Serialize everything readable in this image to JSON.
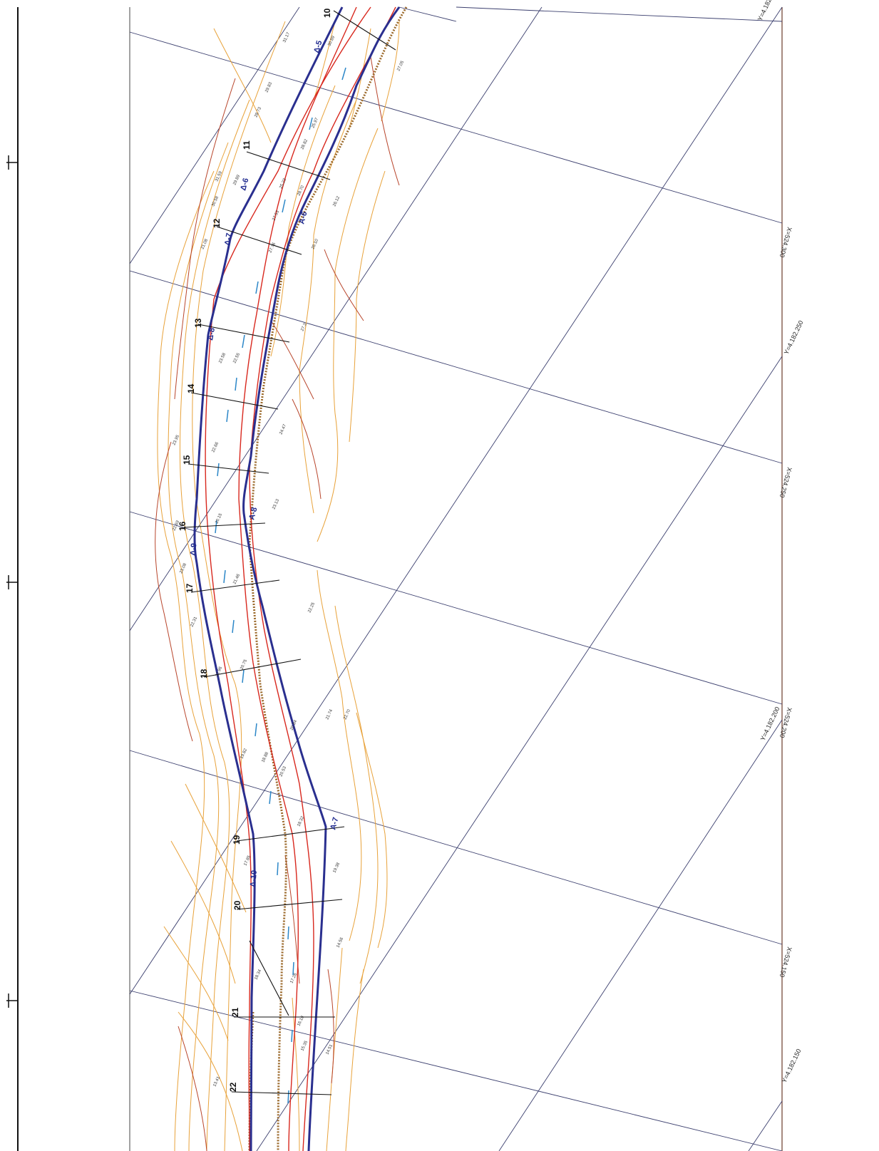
{
  "colors": {
    "grid": "#3b3f6e",
    "contour_orange": "#e8a23a",
    "contour_red": "#b8452b",
    "axis_blue": "#2a2f8f",
    "line_red": "#d8281e",
    "section_black": "#111111",
    "hatched_brown": "#9c6a2c",
    "water_blue": "#2c87c8"
  },
  "sections": [
    "10",
    "11",
    "12",
    "13",
    "14",
    "15",
    "16",
    "17",
    "18",
    "19",
    "20",
    "21",
    "22"
  ],
  "vertices": [
    "Δ-5",
    "Δ-6",
    "Δ-7",
    "Δ-8",
    "Δ-9",
    "Δ-10",
    "A-6",
    "A-7",
    "A-8"
  ],
  "grid_labels": [
    "X=524.300",
    "Y=4.182.250",
    "X=524.250",
    "X=524.200",
    "Y=4.182.200",
    "X=524.150",
    "Y=4.182.150",
    "Y=4.182"
  ],
  "elevations": [
    "31.17",
    "29.83",
    "28.73",
    "30.89",
    "27.05",
    "25.97",
    "28.82",
    "31.59",
    "30.58",
    "29.89",
    "25.23",
    "27.53",
    "28.70",
    "26.12",
    "21.08",
    "27.76",
    "26.10",
    "27.3",
    "23.58",
    "22.55",
    "23.95",
    "24.47",
    "22.66",
    "23.13",
    "22.69",
    "23.08",
    "20.15",
    "21.46",
    "22.31",
    "20.75",
    "22.96",
    "22.25",
    "19.82",
    "20.84",
    "21.74",
    "22.70",
    "18.88",
    "20.53",
    "18.32",
    "17.85",
    "19.38",
    "14.56",
    "18.34",
    "17.26",
    "16.18",
    "15.35",
    "13.41",
    "14.51"
  ],
  "scale_marks": 3
}
